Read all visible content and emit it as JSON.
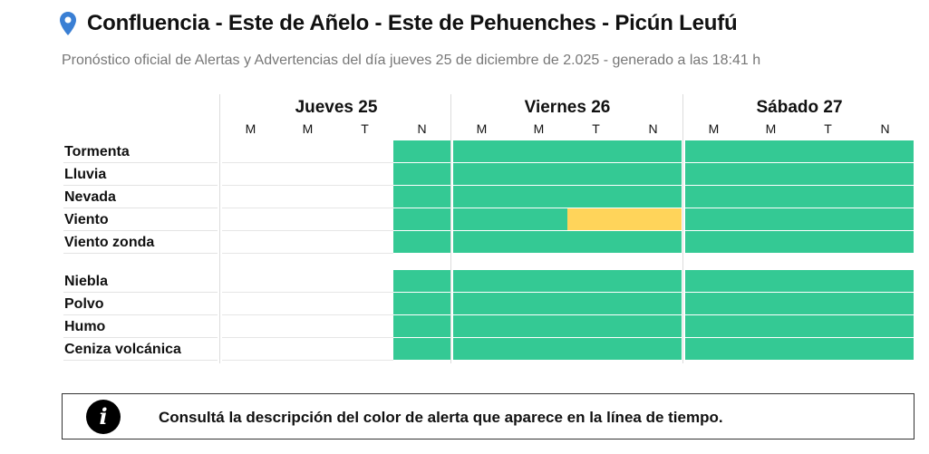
{
  "header": {
    "title": "Confluencia - Este de Añelo - Este de Pehuenches - Picún Leufú",
    "subtitle": "Pronóstico oficial de Alertas y Advertencias del día jueves 25 de diciembre de 2.025 - generado a las 18:41 h",
    "icon": "location-pin-icon"
  },
  "colors": {
    "green": "#34c994",
    "yellow": "#ffd45a",
    "none": "#ffffff",
    "pin": "#3a7fd4"
  },
  "days": [
    {
      "label": "Jueves 25",
      "periods": [
        "M",
        "M",
        "T",
        "N"
      ]
    },
    {
      "label": "Viernes 26",
      "periods": [
        "M",
        "M",
        "T",
        "N"
      ]
    },
    {
      "label": "Sábado 27",
      "periods": [
        "M",
        "M",
        "T",
        "N"
      ]
    }
  ],
  "phenomena": [
    {
      "name": "Tormenta",
      "levels": [
        "none",
        "none",
        "none",
        "green",
        "green",
        "green",
        "green",
        "green",
        "green",
        "green",
        "green",
        "green"
      ]
    },
    {
      "name": "Lluvia",
      "levels": [
        "none",
        "none",
        "none",
        "green",
        "green",
        "green",
        "green",
        "green",
        "green",
        "green",
        "green",
        "green"
      ]
    },
    {
      "name": "Nevada",
      "levels": [
        "none",
        "none",
        "none",
        "green",
        "green",
        "green",
        "green",
        "green",
        "green",
        "green",
        "green",
        "green"
      ]
    },
    {
      "name": "Viento",
      "levels": [
        "none",
        "none",
        "none",
        "green",
        "green",
        "green",
        "yellow",
        "yellow",
        "green",
        "green",
        "green",
        "green"
      ]
    },
    {
      "name": "Viento zonda",
      "levels": [
        "none",
        "none",
        "none",
        "green",
        "green",
        "green",
        "green",
        "green",
        "green",
        "green",
        "green",
        "green"
      ]
    },
    {
      "name": "Niebla",
      "levels": [
        "none",
        "none",
        "none",
        "green",
        "green",
        "green",
        "green",
        "green",
        "green",
        "green",
        "green",
        "green"
      ]
    },
    {
      "name": "Polvo",
      "levels": [
        "none",
        "none",
        "none",
        "green",
        "green",
        "green",
        "green",
        "green",
        "green",
        "green",
        "green",
        "green"
      ]
    },
    {
      "name": "Humo",
      "levels": [
        "none",
        "none",
        "none",
        "green",
        "green",
        "green",
        "green",
        "green",
        "green",
        "green",
        "green",
        "green"
      ]
    },
    {
      "name": "Ceniza volcánica",
      "levels": [
        "none",
        "none",
        "none",
        "green",
        "green",
        "green",
        "green",
        "green",
        "green",
        "green",
        "green",
        "green"
      ]
    }
  ],
  "info": {
    "icon": "info-icon",
    "glyph": "i",
    "text": "Consultá la descripción del color de alerta que aparece en la línea de tiempo."
  }
}
